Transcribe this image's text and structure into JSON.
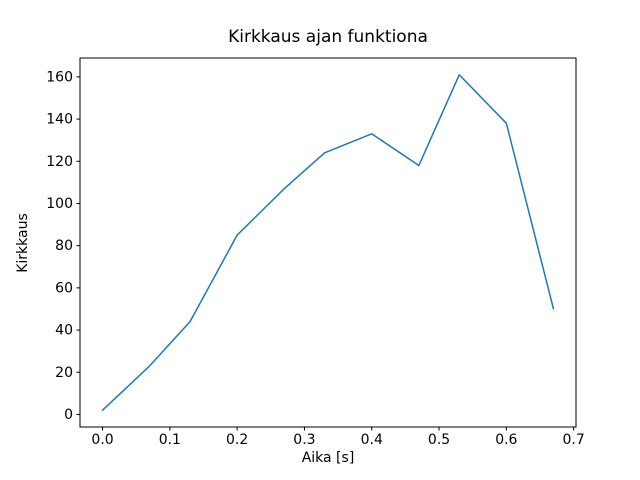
{
  "figure": {
    "background": "#ffffff",
    "text_color": "#000000",
    "spine_color": "#000000"
  },
  "chart_data": {
    "type": "line",
    "title": "Kirkkaus ajan funktiona",
    "xlabel": "Aika [s]",
    "ylabel": "Kirkkaus",
    "x": [
      0.0,
      0.07,
      0.13,
      0.2,
      0.27,
      0.33,
      0.4,
      0.47,
      0.53,
      0.6,
      0.67
    ],
    "y": [
      2,
      23,
      44,
      85,
      107,
      124,
      133,
      118,
      161,
      138,
      50
    ],
    "line_color": "#1f77b4",
    "line_width": 1.5,
    "xlim": [
      -0.0335,
      0.7035
    ],
    "ylim": [
      -5.95,
      168.95
    ],
    "x_ticks": [
      0.0,
      0.1,
      0.2,
      0.3,
      0.4,
      0.5,
      0.6,
      0.7
    ],
    "x_tick_labels": [
      "0.0",
      "0.1",
      "0.2",
      "0.3",
      "0.4",
      "0.5",
      "0.6",
      "0.7"
    ],
    "y_ticks": [
      0,
      20,
      40,
      60,
      80,
      100,
      120,
      140,
      160
    ],
    "y_tick_labels": [
      "0",
      "20",
      "40",
      "60",
      "80",
      "100",
      "120",
      "140",
      "160"
    ],
    "grid": false,
    "legend": null
  }
}
